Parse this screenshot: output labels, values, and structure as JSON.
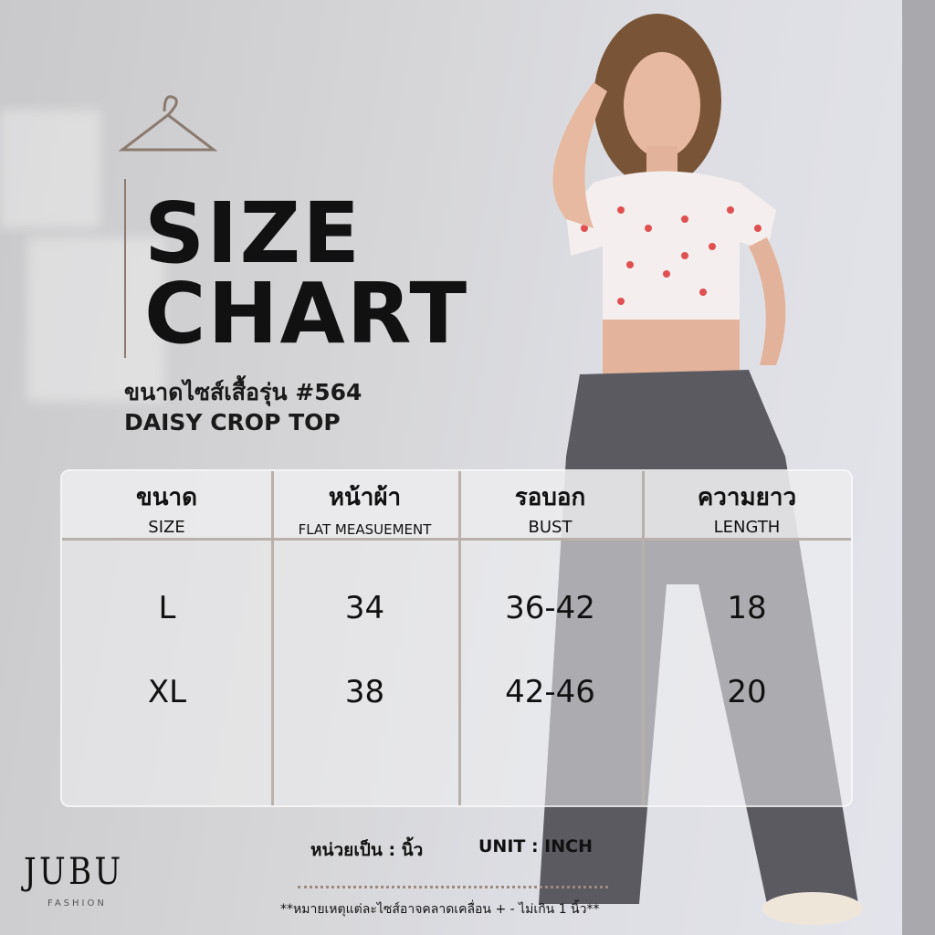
{
  "title": {
    "line1": "SIZE",
    "line2": "CHART"
  },
  "subtitle": {
    "thai": "ขนาดไซส์เสื้อรุ่น #564",
    "english": "DAISY CROP TOP"
  },
  "table": {
    "headers": [
      {
        "thai": "ขนาด",
        "english": "SIZE"
      },
      {
        "thai": "หน้าผ้า",
        "english": "FLAT MEASUEMENT"
      },
      {
        "thai": "รอบอก",
        "english": "BUST"
      },
      {
        "thai": "ความยาว",
        "english": "LENGTH"
      }
    ],
    "rows": [
      [
        "L",
        "34",
        "36-42",
        "18"
      ],
      [
        "XL",
        "38",
        "42-46",
        "20"
      ]
    ]
  },
  "unit": {
    "thai": "หน่วยเป็น : นิ้ว",
    "english": "UNIT : INCH"
  },
  "note": "**หมายเหตุแต่ละไซส์อาจคลาดเคลื่อน + - ไม่เกิน 1 นิ้ว**",
  "brand": {
    "logo": "JUBU",
    "tagline": "FASHION"
  },
  "icons": {
    "hanger": "hanger-icon"
  },
  "colors": {
    "accent": "#8a7a70",
    "top_print": "#e04848"
  }
}
